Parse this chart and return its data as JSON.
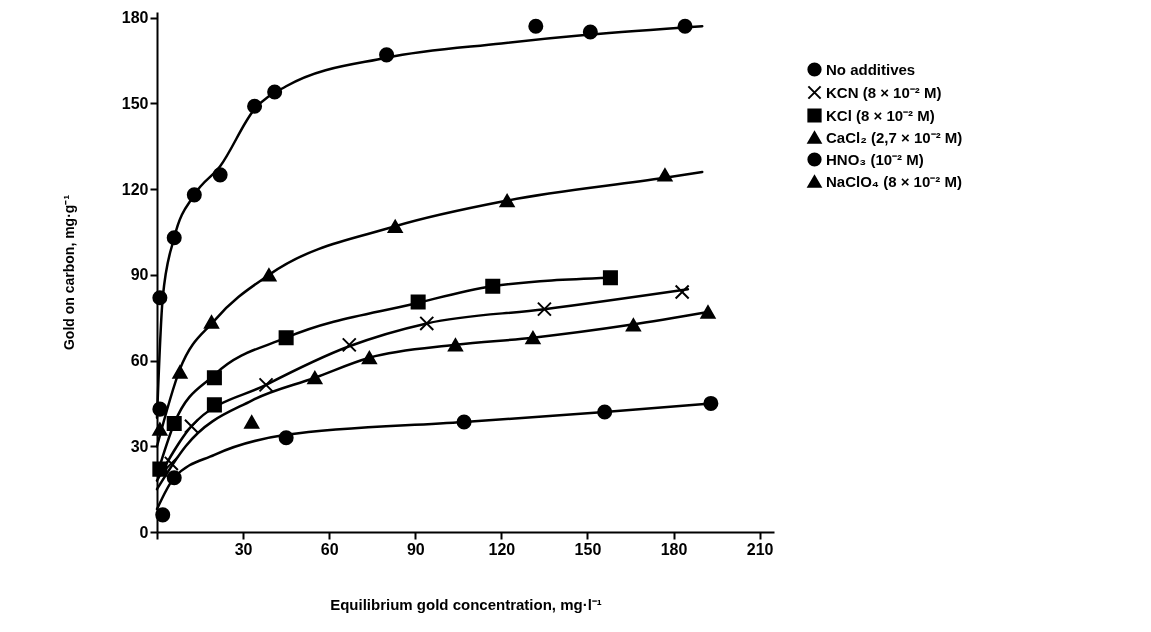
{
  "chart_data": {
    "type": "scatter",
    "xlabel": "Equilibrium gold concentration, mg·l⁻¹",
    "ylabel": "Gold on carbon, mg·g⁻¹",
    "xlim": [
      0,
      215
    ],
    "ylim": [
      0,
      182
    ],
    "xticks": [
      {
        "value": 0,
        "label": null
      },
      30,
      60,
      90,
      120,
      150,
      180,
      210
    ],
    "yticks": [
      0,
      30,
      60,
      90,
      120,
      150,
      180
    ],
    "grid": false,
    "legend": "right",
    "series": [
      {
        "name": "No additives",
        "marker": "circle",
        "color": "#000000",
        "x": [
          2,
          6,
          45,
          107,
          156,
          193
        ],
        "values": [
          6,
          19,
          33,
          38.5,
          42,
          45
        ]
      },
      {
        "name": "KCN (8 × 10⁻² M)",
        "marker": "cross",
        "color": "#000000",
        "x": [
          5,
          12,
          38,
          67,
          94,
          135,
          183
        ],
        "values": [
          24,
          37,
          51.5,
          65.5,
          73,
          78,
          84
        ]
      },
      {
        "name": "KCl (8 × 10⁻² M)",
        "marker": "square",
        "color": "#000000",
        "x": [
          1,
          6,
          20,
          20,
          45,
          91,
          117,
          158
        ],
        "values": [
          22,
          38,
          44.5,
          54,
          68,
          80.5,
          86,
          89
        ]
      },
      {
        "name": "CaCl₂ (2,7 × 10⁻² M)",
        "marker": "triangle",
        "color": "#000000",
        "x": [
          1,
          8,
          19,
          39,
          83,
          122,
          177
        ],
        "values": [
          36,
          56,
          73.5,
          90,
          107,
          116,
          125
        ]
      },
      {
        "name": "HNO₃ (10⁻² M)",
        "marker": "circle",
        "color": "#000000",
        "x": [
          1,
          1,
          6,
          13,
          22,
          34,
          41,
          80,
          132,
          151,
          184
        ],
        "values": [
          43,
          82,
          103,
          118,
          125,
          149,
          154,
          167,
          177,
          175,
          177
        ]
      },
      {
        "name": "NaClO₄ (8 × 10⁻² M)",
        "marker": "triangle",
        "color": "#000000",
        "x": [
          33,
          55,
          74,
          104,
          131,
          166,
          192
        ],
        "values": [
          38.5,
          54,
          61,
          65.5,
          68,
          72.5,
          77
        ]
      },
      {
        "type": "line",
        "color": "#000000",
        "x": [
          0,
          6,
          20,
          45,
          107,
          156,
          193
        ],
        "values": [
          8,
          19,
          27,
          34,
          38.5,
          42,
          45
        ]
      },
      {
        "type": "line",
        "color": "#000000",
        "x": [
          0,
          12,
          38,
          67,
          94,
          135,
          185
        ],
        "values": [
          18,
          37,
          51.5,
          65,
          73,
          78,
          85
        ]
      },
      {
        "type": "line",
        "color": "#000000",
        "x": [
          0,
          6,
          20,
          45,
          90,
          117,
          158
        ],
        "values": [
          20,
          38,
          55,
          68,
          80,
          86,
          89
        ]
      },
      {
        "type": "line",
        "color": "#000000",
        "x": [
          0,
          8,
          20,
          39,
          83,
          122,
          177,
          190
        ],
        "values": [
          30,
          57,
          74,
          90,
          107,
          116,
          124,
          126
        ]
      },
      {
        "type": "line",
        "color": "#000000",
        "x": [
          0,
          2,
          6,
          13,
          22,
          34,
          45,
          80,
          120,
          150,
          190
        ],
        "values": [
          40,
          82,
          103,
          118,
          128,
          148,
          156,
          166,
          171,
          174,
          177
        ]
      },
      {
        "type": "line",
        "color": "#000000",
        "x": [
          0,
          10,
          33,
          55,
          74,
          104,
          131,
          165,
          192
        ],
        "values": [
          15,
          30,
          46,
          54,
          61,
          65.5,
          68,
          72.5,
          77
        ]
      }
    ]
  }
}
